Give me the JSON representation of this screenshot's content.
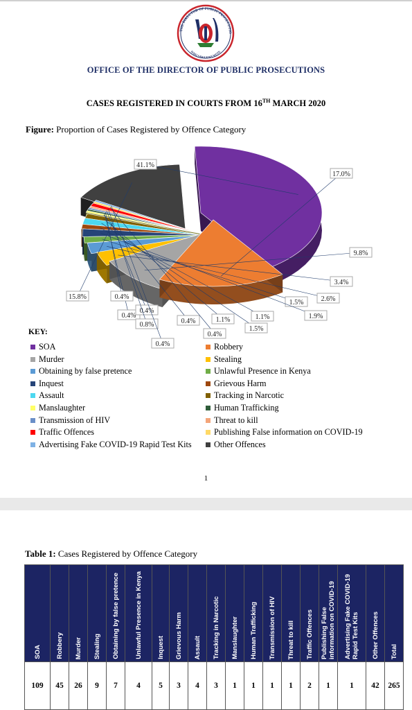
{
  "header": {
    "seal_text": "OFFICE OF THE DIRECTOR OF PUBLIC PROSECUTIONS KENYA",
    "seal_motto": "HAKI SAWA KWA WOTE",
    "organization": "OFFICE OF THE DIRECTOR OF PUBLIC PROSECUTIONS",
    "title_pre": "CASES REGISTERED IN COURTS FROM 16",
    "title_sup": "TH",
    "title_post": " MARCH 2020"
  },
  "figure": {
    "caption_label": "Figure:",
    "caption_text": " Proportion of Cases Registered by Offence Category",
    "key_title": "KEY:"
  },
  "chart_data": {
    "type": "pie",
    "categories": [
      "SOA",
      "Robbery",
      "Murder",
      "Stealing",
      "Obtaining by false pretence",
      "Unlawful Presence in Kenya",
      "Inquest",
      "Grievous Harm",
      "Assault",
      "Tracking in Narcotic",
      "Manslaughter",
      "Human Trafficking",
      "Transmission of HIV",
      "Threat to kill",
      "Traffic Offences",
      "Publishing False information on COVID-19",
      "Advertising Fake COVID-19 Rapid Test Kits",
      "Other Offences"
    ],
    "values": [
      41.1,
      17.0,
      9.8,
      3.4,
      2.6,
      1.5,
      1.9,
      1.1,
      1.5,
      1.1,
      0.4,
      0.4,
      0.4,
      0.4,
      0.8,
      0.4,
      0.4,
      15.8
    ],
    "labels": [
      "41.1%",
      "17.0%",
      "9.8%",
      "3.4%",
      "2.6%",
      "1.5%",
      "1.9%",
      "1.1%",
      "1.5%",
      "1.1%",
      "0.4%",
      "0.4%",
      "0.4%",
      "0.4%",
      "0.8%",
      "0.4%",
      "0.4%",
      "15.8%"
    ],
    "colors": [
      "#7030a0",
      "#ed7d31",
      "#a5a5a5",
      "#ffc000",
      "#5b9bd5",
      "#70ad47",
      "#264478",
      "#9e480e",
      "#4dd8f0",
      "#806000",
      "#ffff66",
      "#2f5d3a",
      "#6a8fc8",
      "#f4a57a",
      "#ff0000",
      "#ffd966",
      "#7fb2e5",
      "#404040"
    ],
    "legend_placement": "bottom"
  },
  "page_number": "1",
  "table": {
    "caption_label": "Table 1:",
    "caption_text": " Cases Registered by Offence Category",
    "headers": [
      "SOA",
      "Robbery",
      "Murder",
      "Stealing",
      "Obtaining by false pretence",
      "Unlawful Presence in Kenya",
      "Inquest",
      "Grievous Harm",
      "Assault",
      "Tracking in Narcotic",
      "Manslaughter",
      "Human Trafficking",
      "Transmission of HIV",
      "Threat to kill",
      "Traffic Offences",
      "Publishing False information on COVID-19",
      "Advertising Fake COVID-19 Rapid Test Kits",
      "Other Offences",
      "Total"
    ],
    "values": [
      "109",
      "45",
      "26",
      "9",
      "7",
      "4",
      "5",
      "3",
      "4",
      "3",
      "1",
      "1",
      "1",
      "1",
      "2",
      "1",
      "1",
      "42",
      "265"
    ]
  }
}
